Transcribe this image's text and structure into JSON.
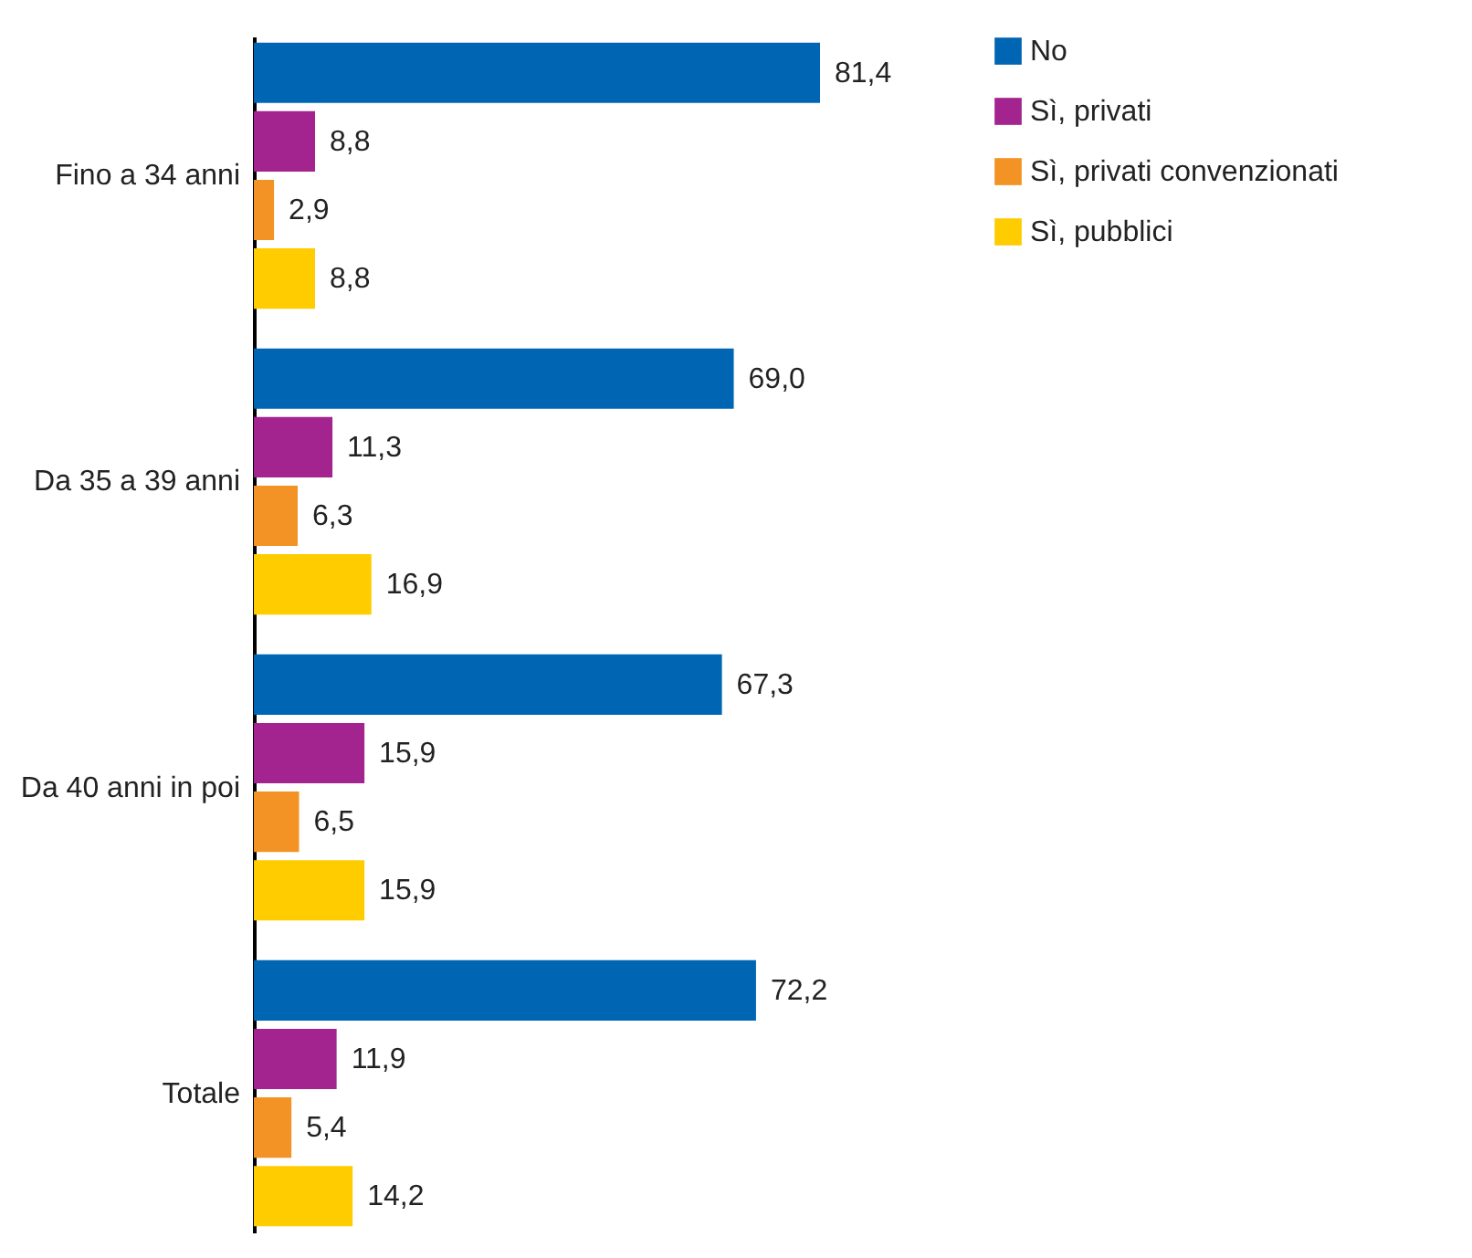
{
  "chart_data": {
    "type": "bar",
    "orientation": "horizontal",
    "categories": [
      "Fino a 34 anni",
      "Da 35 a 39 anni",
      "Da 40 anni in poi",
      "Totale"
    ],
    "series": [
      {
        "name": "No",
        "color": "#0066b3",
        "values": [
          81.4,
          69.0,
          67.3,
          72.2
        ],
        "value_labels": [
          "81,4",
          "69,0",
          "67,3",
          "72,2"
        ]
      },
      {
        "name": "Sì, privati",
        "color": "#a3248f",
        "values": [
          8.8,
          11.3,
          15.9,
          11.9
        ],
        "value_labels": [
          "8,8",
          "11,3",
          "15,9",
          "11,9"
        ]
      },
      {
        "name": "Sì, privati convenzionati",
        "color": "#f39325",
        "values": [
          2.9,
          6.3,
          6.5,
          5.4
        ],
        "value_labels": [
          "2,9",
          "6,3",
          "6,5",
          "5,4"
        ]
      },
      {
        "name": "Sì, pubblici",
        "color": "#ffcc00",
        "values": [
          8.8,
          16.9,
          15.9,
          14.2
        ],
        "value_labels": [
          "8,8",
          "16,9",
          "15,9",
          "14,2"
        ]
      }
    ],
    "legend": "top right"
  }
}
